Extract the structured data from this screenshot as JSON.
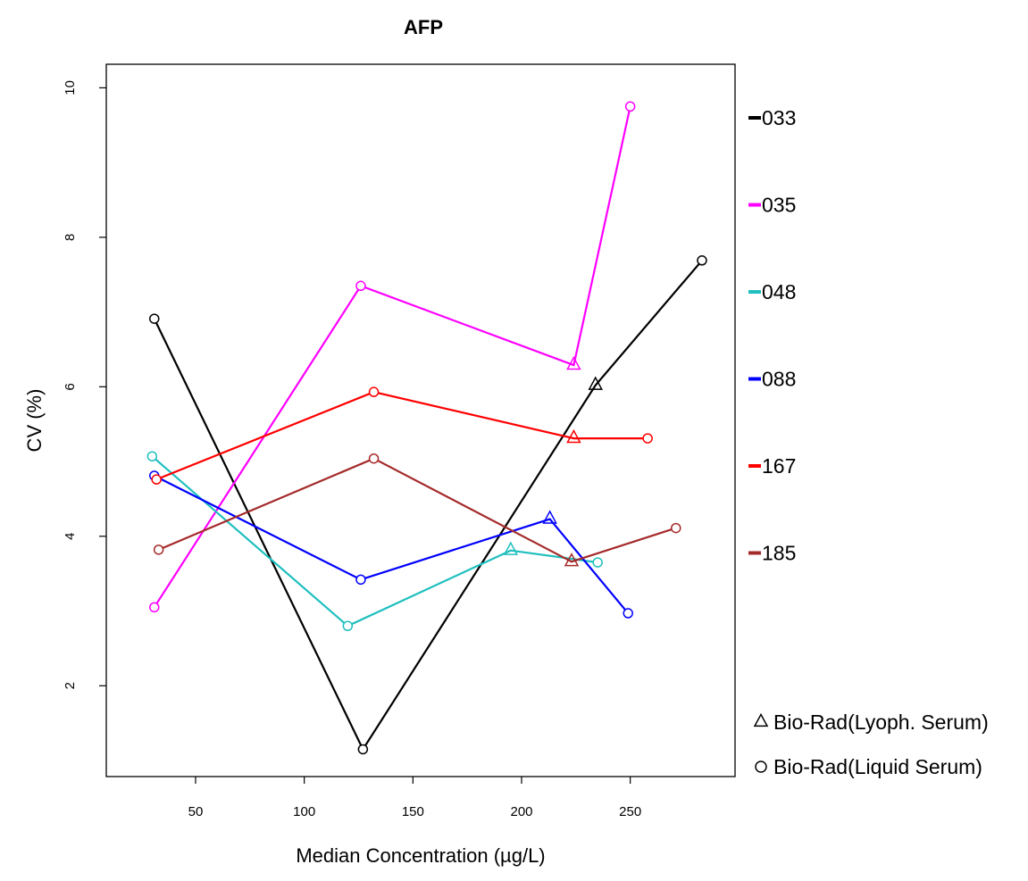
{
  "chart_data": {
    "type": "line",
    "title": "AFP",
    "xlabel": "Median Concentration  (µg/L)",
    "ylabel": "CV (%)",
    "xlim": [
      20,
      290
    ],
    "ylim": [
      1.0,
      10.1
    ],
    "xticks": [
      "50",
      "100",
      "150",
      "200",
      "250"
    ],
    "yticks": [
      "2",
      "4",
      "6",
      "8",
      "10"
    ],
    "grid": false,
    "legend_position": "right",
    "series": [
      {
        "name": "033",
        "color": "#000000",
        "points": [
          {
            "x": 31,
            "y": 6.91,
            "marker": "circle"
          },
          {
            "x": 127,
            "y": 1.15,
            "marker": "circle"
          },
          {
            "x": 234,
            "y": 6.02,
            "marker": "triangle"
          },
          {
            "x": 283,
            "y": 7.69,
            "marker": "circle"
          }
        ]
      },
      {
        "name": "035",
        "color": "#ff00ff",
        "points": [
          {
            "x": 31,
            "y": 3.05,
            "marker": "circle"
          },
          {
            "x": 126,
            "y": 7.35,
            "marker": "circle"
          },
          {
            "x": 224,
            "y": 6.29,
            "marker": "triangle"
          },
          {
            "x": 250,
            "y": 9.75,
            "marker": "circle"
          }
        ]
      },
      {
        "name": "048",
        "color": "#1fbfbf",
        "points": [
          {
            "x": 30,
            "y": 5.07,
            "marker": "circle"
          },
          {
            "x": 120,
            "y": 2.8,
            "marker": "circle"
          },
          {
            "x": 195,
            "y": 3.81,
            "marker": "triangle"
          },
          {
            "x": 235,
            "y": 3.65,
            "marker": "circle"
          }
        ]
      },
      {
        "name": "088",
        "color": "#0000ff",
        "points": [
          {
            "x": 31,
            "y": 4.81,
            "marker": "circle"
          },
          {
            "x": 126,
            "y": 3.42,
            "marker": "circle"
          },
          {
            "x": 213,
            "y": 4.23,
            "marker": "triangle"
          },
          {
            "x": 249,
            "y": 2.97,
            "marker": "circle"
          }
        ]
      },
      {
        "name": "167",
        "color": "#ff0000",
        "points": [
          {
            "x": 32,
            "y": 4.76,
            "marker": "circle"
          },
          {
            "x": 132,
            "y": 5.93,
            "marker": "circle"
          },
          {
            "x": 224,
            "y": 5.31,
            "marker": "triangle"
          },
          {
            "x": 258,
            "y": 5.31,
            "marker": "circle"
          }
        ]
      },
      {
        "name": "185",
        "color": "#a52a2a",
        "points": [
          {
            "x": 33,
            "y": 3.82,
            "marker": "circle"
          },
          {
            "x": 132,
            "y": 5.04,
            "marker": "circle"
          },
          {
            "x": 223,
            "y": 3.66,
            "marker": "triangle"
          },
          {
            "x": 271,
            "y": 4.11,
            "marker": "circle"
          }
        ]
      }
    ],
    "marker_legend": [
      {
        "symbol": "triangle",
        "label": "Bio-Rad(Lyoph. Serum)"
      },
      {
        "symbol": "circle",
        "label": "Bio-Rad(Liquid Serum)"
      }
    ]
  }
}
